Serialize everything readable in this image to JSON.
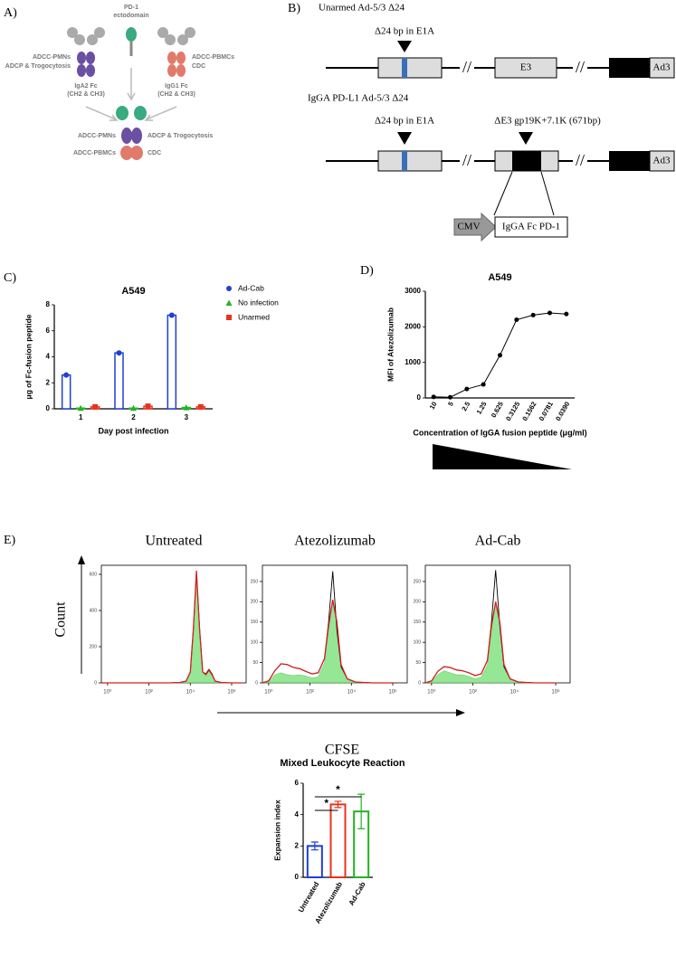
{
  "panel_labels": [
    "A)",
    "B)",
    "C)",
    "D)",
    "E)"
  ],
  "panel_a": {
    "pd1_label": [
      "PD-1",
      "ectodomain"
    ],
    "iga": {
      "functions": [
        "ADCC-PMNs",
        "ADCP & Trogocytosis"
      ],
      "name": [
        "IgA2 Fc",
        "(CH2 & CH3)"
      ]
    },
    "igg": {
      "functions": [
        "ADCC-PBMCs",
        "CDC"
      ],
      "name": [
        "IgG1 Fc",
        "(CH2 & CH3)"
      ]
    },
    "fusion_functions": [
      "ADCC-PMNs",
      "ADCP & Trogocytosis",
      "ADCC-PBMCs",
      "CDC"
    ]
  },
  "panel_b": {
    "unarmed": {
      "title": "Unarmed Ad-5/3 Δ24",
      "deletion": "Δ24 bp in E1A",
      "e3": "E3",
      "ad3": "Ad3"
    },
    "armed": {
      "title": "IgGA PD-L1 Ad-5/3 Δ24",
      "deletion": "Δ24 bp in E1A",
      "e3_deletion": "ΔE3 gp19K+7.1K (671bp)",
      "ad3": "Ad3",
      "promoter": "CMV",
      "insert": "IgGA Fc PD-1"
    }
  },
  "panel_e": {
    "y_label": "Count",
    "x_label": "CFSE"
  },
  "chart_data": [
    {
      "type": "bar",
      "title": "A549",
      "y_label": "μg of Fc-fusion peptide",
      "x_label": "Day post infection",
      "categories": [
        "1",
        "2",
        "3"
      ],
      "series": [
        {
          "name": "Ad-Cab",
          "color": "#1f3fd6",
          "marker": "circle",
          "values": [
            2.6,
            4.3,
            7.2
          ]
        },
        {
          "name": "No infection",
          "color": "#22b422",
          "marker": "triangle",
          "values": [
            0.05,
            0.05,
            0.1
          ]
        },
        {
          "name": "Unarmed",
          "color": "#e8331c",
          "marker": "square",
          "values": [
            0.15,
            0.2,
            0.15
          ]
        }
      ],
      "ylim": [
        0,
        8
      ],
      "yticks": [
        0,
        2,
        4,
        6,
        8
      ],
      "legend": "right"
    },
    {
      "type": "line",
      "title": "A549",
      "y_label": "MFI of Atezolizumab",
      "x_label": "Concentration of IgGA fusion peptide (μg/ml)",
      "categories": [
        "10",
        "5",
        "2.5",
        "1.25",
        "0.625",
        "0.3125",
        "0.1562",
        "0.0781",
        "0.0390"
      ],
      "values": [
        30,
        20,
        250,
        380,
        1200,
        2200,
        2330,
        2390,
        2360
      ],
      "color": "#000000",
      "ylim": [
        0,
        3000
      ],
      "yticks": [
        0,
        1000,
        2000,
        3000
      ]
    },
    {
      "type": "line",
      "title": "Untreated",
      "x": [
        -0.3,
        1,
        2,
        3,
        3.5,
        3.8,
        4.0,
        4.15,
        4.3,
        4.45,
        4.6,
        4.75,
        4.9,
        5.05,
        5.2,
        5.5,
        6,
        6.5
      ],
      "series": [
        {
          "color": "#7be07b",
          "fill": true,
          "values": [
            0,
            0,
            0,
            0,
            2,
            10,
            60,
            300,
            610,
            290,
            60,
            45,
            70,
            45,
            10,
            2,
            0,
            0
          ]
        },
        {
          "color": "#000000",
          "values": [
            0,
            0,
            0,
            0,
            2,
            10,
            60,
            300,
            610,
            300,
            60,
            50,
            75,
            50,
            10,
            2,
            0,
            0
          ]
        },
        {
          "color": "#d42020",
          "values": [
            0,
            0,
            0,
            0,
            2,
            10,
            60,
            300,
            620,
            290,
            60,
            45,
            70,
            45,
            10,
            2,
            0,
            0
          ]
        }
      ],
      "xlim": [
        -0.3,
        6.7
      ],
      "xticks": [
        {
          "value": 0,
          "label": "10⁰"
        },
        {
          "value": 2,
          "label": "10²"
        },
        {
          "value": 4,
          "label": "10⁴"
        },
        {
          "value": 6,
          "label": "10⁶"
        }
      ],
      "ylim": [
        0,
        650
      ],
      "yticks": [
        0,
        200,
        400,
        600
      ]
    },
    {
      "type": "line",
      "title": "Atezolizumab",
      "x": [
        -0.3,
        0,
        0.3,
        0.6,
        0.9,
        1.2,
        1.5,
        1.8,
        2.1,
        2.4,
        2.7,
        2.9,
        3.1,
        3.3,
        3.5,
        3.8,
        4.2,
        5,
        6
      ],
      "series": [
        {
          "color": "#7be07b",
          "fill": true,
          "values": [
            0,
            3,
            20,
            25,
            20,
            18,
            20,
            17,
            12,
            15,
            50,
            140,
            200,
            140,
            40,
            8,
            1,
            0,
            0
          ]
        },
        {
          "color": "#000000",
          "values": [
            0,
            5,
            30,
            47,
            45,
            38,
            35,
            28,
            22,
            25,
            60,
            150,
            275,
            130,
            40,
            10,
            2,
            0,
            0
          ]
        },
        {
          "color": "#d42020",
          "values": [
            0,
            5,
            30,
            47,
            45,
            38,
            35,
            28,
            22,
            25,
            60,
            140,
            205,
            150,
            45,
            10,
            2,
            0,
            0
          ]
        }
      ],
      "xlim": [
        -0.3,
        6.7
      ],
      "xticks": [
        {
          "value": 0,
          "label": "10⁰"
        },
        {
          "value": 2,
          "label": "10²"
        },
        {
          "value": 4,
          "label": "10⁴"
        },
        {
          "value": 6,
          "label": "10⁶"
        }
      ],
      "ylim": [
        0,
        290
      ],
      "yticks": [
        0,
        50,
        100,
        150,
        200,
        250
      ]
    },
    {
      "type": "line",
      "title": "Ad-Cab",
      "x": [
        -0.3,
        0,
        0.3,
        0.6,
        0.9,
        1.2,
        1.5,
        1.8,
        2.1,
        2.4,
        2.7,
        2.9,
        3.1,
        3.3,
        3.5,
        3.8,
        4.2,
        5,
        6
      ],
      "series": [
        {
          "color": "#7be07b",
          "fill": true,
          "values": [
            0,
            3,
            20,
            30,
            25,
            20,
            20,
            16,
            10,
            14,
            45,
            135,
            195,
            140,
            40,
            8,
            1,
            0,
            0
          ]
        },
        {
          "color": "#000000",
          "values": [
            0,
            5,
            28,
            40,
            38,
            32,
            30,
            25,
            18,
            22,
            55,
            150,
            278,
            140,
            40,
            10,
            2,
            0,
            0
          ]
        },
        {
          "color": "#d42020",
          "values": [
            0,
            5,
            28,
            40,
            38,
            32,
            30,
            25,
            18,
            22,
            55,
            140,
            200,
            150,
            45,
            10,
            2,
            0,
            0
          ]
        }
      ],
      "xlim": [
        -0.3,
        6.7
      ],
      "xticks": [
        {
          "value": 0,
          "label": "10⁰"
        },
        {
          "value": 2,
          "label": "10²"
        },
        {
          "value": 4,
          "label": "10⁴"
        },
        {
          "value": 6,
          "label": "10⁶"
        }
      ],
      "ylim": [
        0,
        290
      ],
      "yticks": [
        0,
        50,
        100,
        150,
        200,
        250
      ]
    },
    {
      "type": "bar",
      "title": "Mixed Leukocyte Reaction",
      "y_label": "Expansion index",
      "categories": [
        "Untreated",
        "Atezolizumab",
        "Ad-Cab"
      ],
      "values": [
        2.0,
        4.65,
        4.2
      ],
      "errors": [
        0.25,
        0.2,
        1.1
      ],
      "colors": [
        "#1f3fd6",
        "#e8331c",
        "#22b422"
      ],
      "annotations": [
        "*",
        "*"
      ],
      "ylim": [
        0,
        6
      ],
      "yticks": [
        0,
        2,
        4,
        6
      ]
    }
  ]
}
